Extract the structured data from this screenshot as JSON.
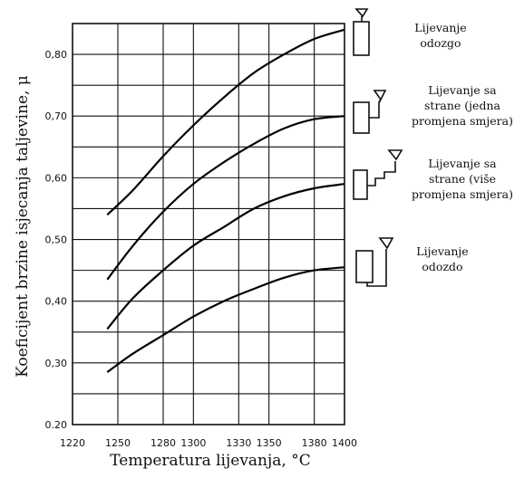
{
  "chart_data": {
    "type": "line",
    "xlabel": "Temperatura lijevanja, °C",
    "ylabel": "Koeficijent brzine isjecanja taljevine, μ",
    "xlim": [
      1220,
      1400
    ],
    "ylim": [
      0.2,
      0.85
    ],
    "x_ticks": [
      {
        "value": 1220,
        "label": "1220"
      },
      {
        "value": 1250,
        "label": "1250"
      },
      {
        "value": 1280,
        "label": "1280"
      },
      {
        "value": 1300,
        "label": "1300"
      },
      {
        "value": 1330,
        "label": "1330"
      },
      {
        "value": 1350,
        "label": "1350"
      },
      {
        "value": 1380,
        "label": "1380"
      },
      {
        "value": 1400,
        "label": "1400"
      }
    ],
    "y_ticks": [
      {
        "value": 0.2,
        "label": "0.20"
      },
      {
        "value": 0.3,
        "label": "0,30"
      },
      {
        "value": 0.4,
        "label": "0,40"
      },
      {
        "value": 0.5,
        "label": "0,50"
      },
      {
        "value": 0.6,
        "label": "0,60"
      },
      {
        "value": 0.7,
        "label": "0,70"
      },
      {
        "value": 0.8,
        "label": "0,80"
      }
    ],
    "grid": true,
    "x_grid": [
      1250,
      1280,
      1300,
      1330,
      1350,
      1380
    ],
    "y_grid": [
      0.25,
      0.3,
      0.35,
      0.4,
      0.45,
      0.5,
      0.55,
      0.6,
      0.65,
      0.7,
      0.75,
      0.8
    ],
    "series": [
      {
        "name": "Lijevanje odozgo",
        "x": [
          1243,
          1260,
          1280,
          1300,
          1320,
          1340,
          1360,
          1380,
          1400
        ],
        "y": [
          0.54,
          0.58,
          0.635,
          0.685,
          0.73,
          0.77,
          0.8,
          0.825,
          0.84
        ]
      },
      {
        "name": "Lijevanje sa strane (jedna promjena smjera)",
        "x": [
          1243,
          1260,
          1280,
          1300,
          1320,
          1340,
          1360,
          1380,
          1400
        ],
        "y": [
          0.435,
          0.49,
          0.545,
          0.59,
          0.625,
          0.655,
          0.68,
          0.695,
          0.7
        ]
      },
      {
        "name": "Lijevanje sa strane (više promjena smjera)",
        "x": [
          1243,
          1260,
          1280,
          1300,
          1320,
          1340,
          1360,
          1380,
          1400
        ],
        "y": [
          0.355,
          0.405,
          0.45,
          0.49,
          0.52,
          0.55,
          0.57,
          0.583,
          0.59
        ]
      },
      {
        "name": "Lijevanje odozdo",
        "x": [
          1243,
          1260,
          1280,
          1300,
          1320,
          1340,
          1360,
          1380,
          1400
        ],
        "y": [
          0.285,
          0.315,
          0.345,
          0.375,
          0.4,
          0.42,
          0.438,
          0.45,
          0.455
        ]
      }
    ],
    "legend": {
      "placement": "right",
      "entries": [
        {
          "lines": [
            "Lijevanje",
            "odozgo"
          ],
          "icon": "top-pouring-mold-icon"
        },
        {
          "lines": [
            "Lijevanje sa",
            "strane (jedna",
            "promjena smjera)"
          ],
          "icon": "side-pouring-single-turn-icon"
        },
        {
          "lines": [
            "Lijevanje sa",
            "strane (više",
            "promjena smjera)"
          ],
          "icon": "side-pouring-multi-turn-icon"
        },
        {
          "lines": [
            "Lijevanje",
            "odozdo"
          ],
          "icon": "bottom-pouring-mold-icon"
        }
      ]
    }
  }
}
